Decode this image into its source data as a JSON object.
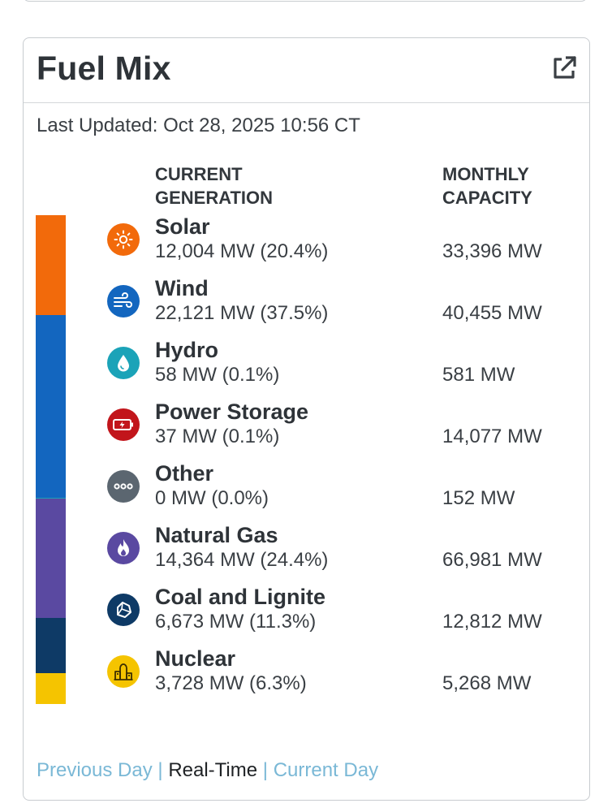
{
  "card": {
    "title": "Fuel Mix",
    "last_updated": "Last Updated: Oct 28, 2025 10:56 CT",
    "col_generation": "CURRENT\nGENERATION",
    "col_capacity": "MONTHLY\nCAPACITY"
  },
  "fuels": [
    {
      "name": "Solar",
      "generation": "12,004 MW (20.4%)",
      "capacity": "33,396 MW",
      "icon": "sun-icon",
      "color": "#f26a0b",
      "share": 20.4
    },
    {
      "name": "Wind",
      "generation": "22,121 MW (37.5%)",
      "capacity": "40,455 MW",
      "icon": "wind-icon",
      "color": "#1366bf",
      "share": 37.5
    },
    {
      "name": "Hydro",
      "generation": "58 MW (0.1%)",
      "capacity": "581 MW",
      "icon": "water-drop-icon",
      "color": "#1ba3b8",
      "share": 0.1
    },
    {
      "name": "Power Storage",
      "generation": "37 MW (0.1%)",
      "capacity": "14,077 MW",
      "icon": "battery-icon",
      "color": "#c2151b",
      "share": 0.1
    },
    {
      "name": "Other",
      "generation": "0 MW (0.0%)",
      "capacity": "152 MW",
      "icon": "ellipsis-icon",
      "color": "#5b6670",
      "share": 0.0
    },
    {
      "name": "Natural Gas",
      "generation": "14,364 MW (24.4%)",
      "capacity": "66,981 MW",
      "icon": "flame-icon",
      "color": "#5a49a1",
      "share": 24.4
    },
    {
      "name": "Coal and Lignite",
      "generation": "6,673 MW (11.3%)",
      "capacity": "12,812 MW",
      "icon": "coal-icon",
      "color": "#0e3a66",
      "share": 11.3
    },
    {
      "name": "Nuclear",
      "generation": "3,728 MW (6.3%)",
      "capacity": "5,268 MW",
      "icon": "nuclear-plant-icon",
      "color": "#f5c400",
      "share": 6.3
    }
  ],
  "footer": {
    "previous": "Previous Day",
    "sep1": "|",
    "realtime": "Real-Time",
    "sep2": "|",
    "current": "Current Day"
  }
}
